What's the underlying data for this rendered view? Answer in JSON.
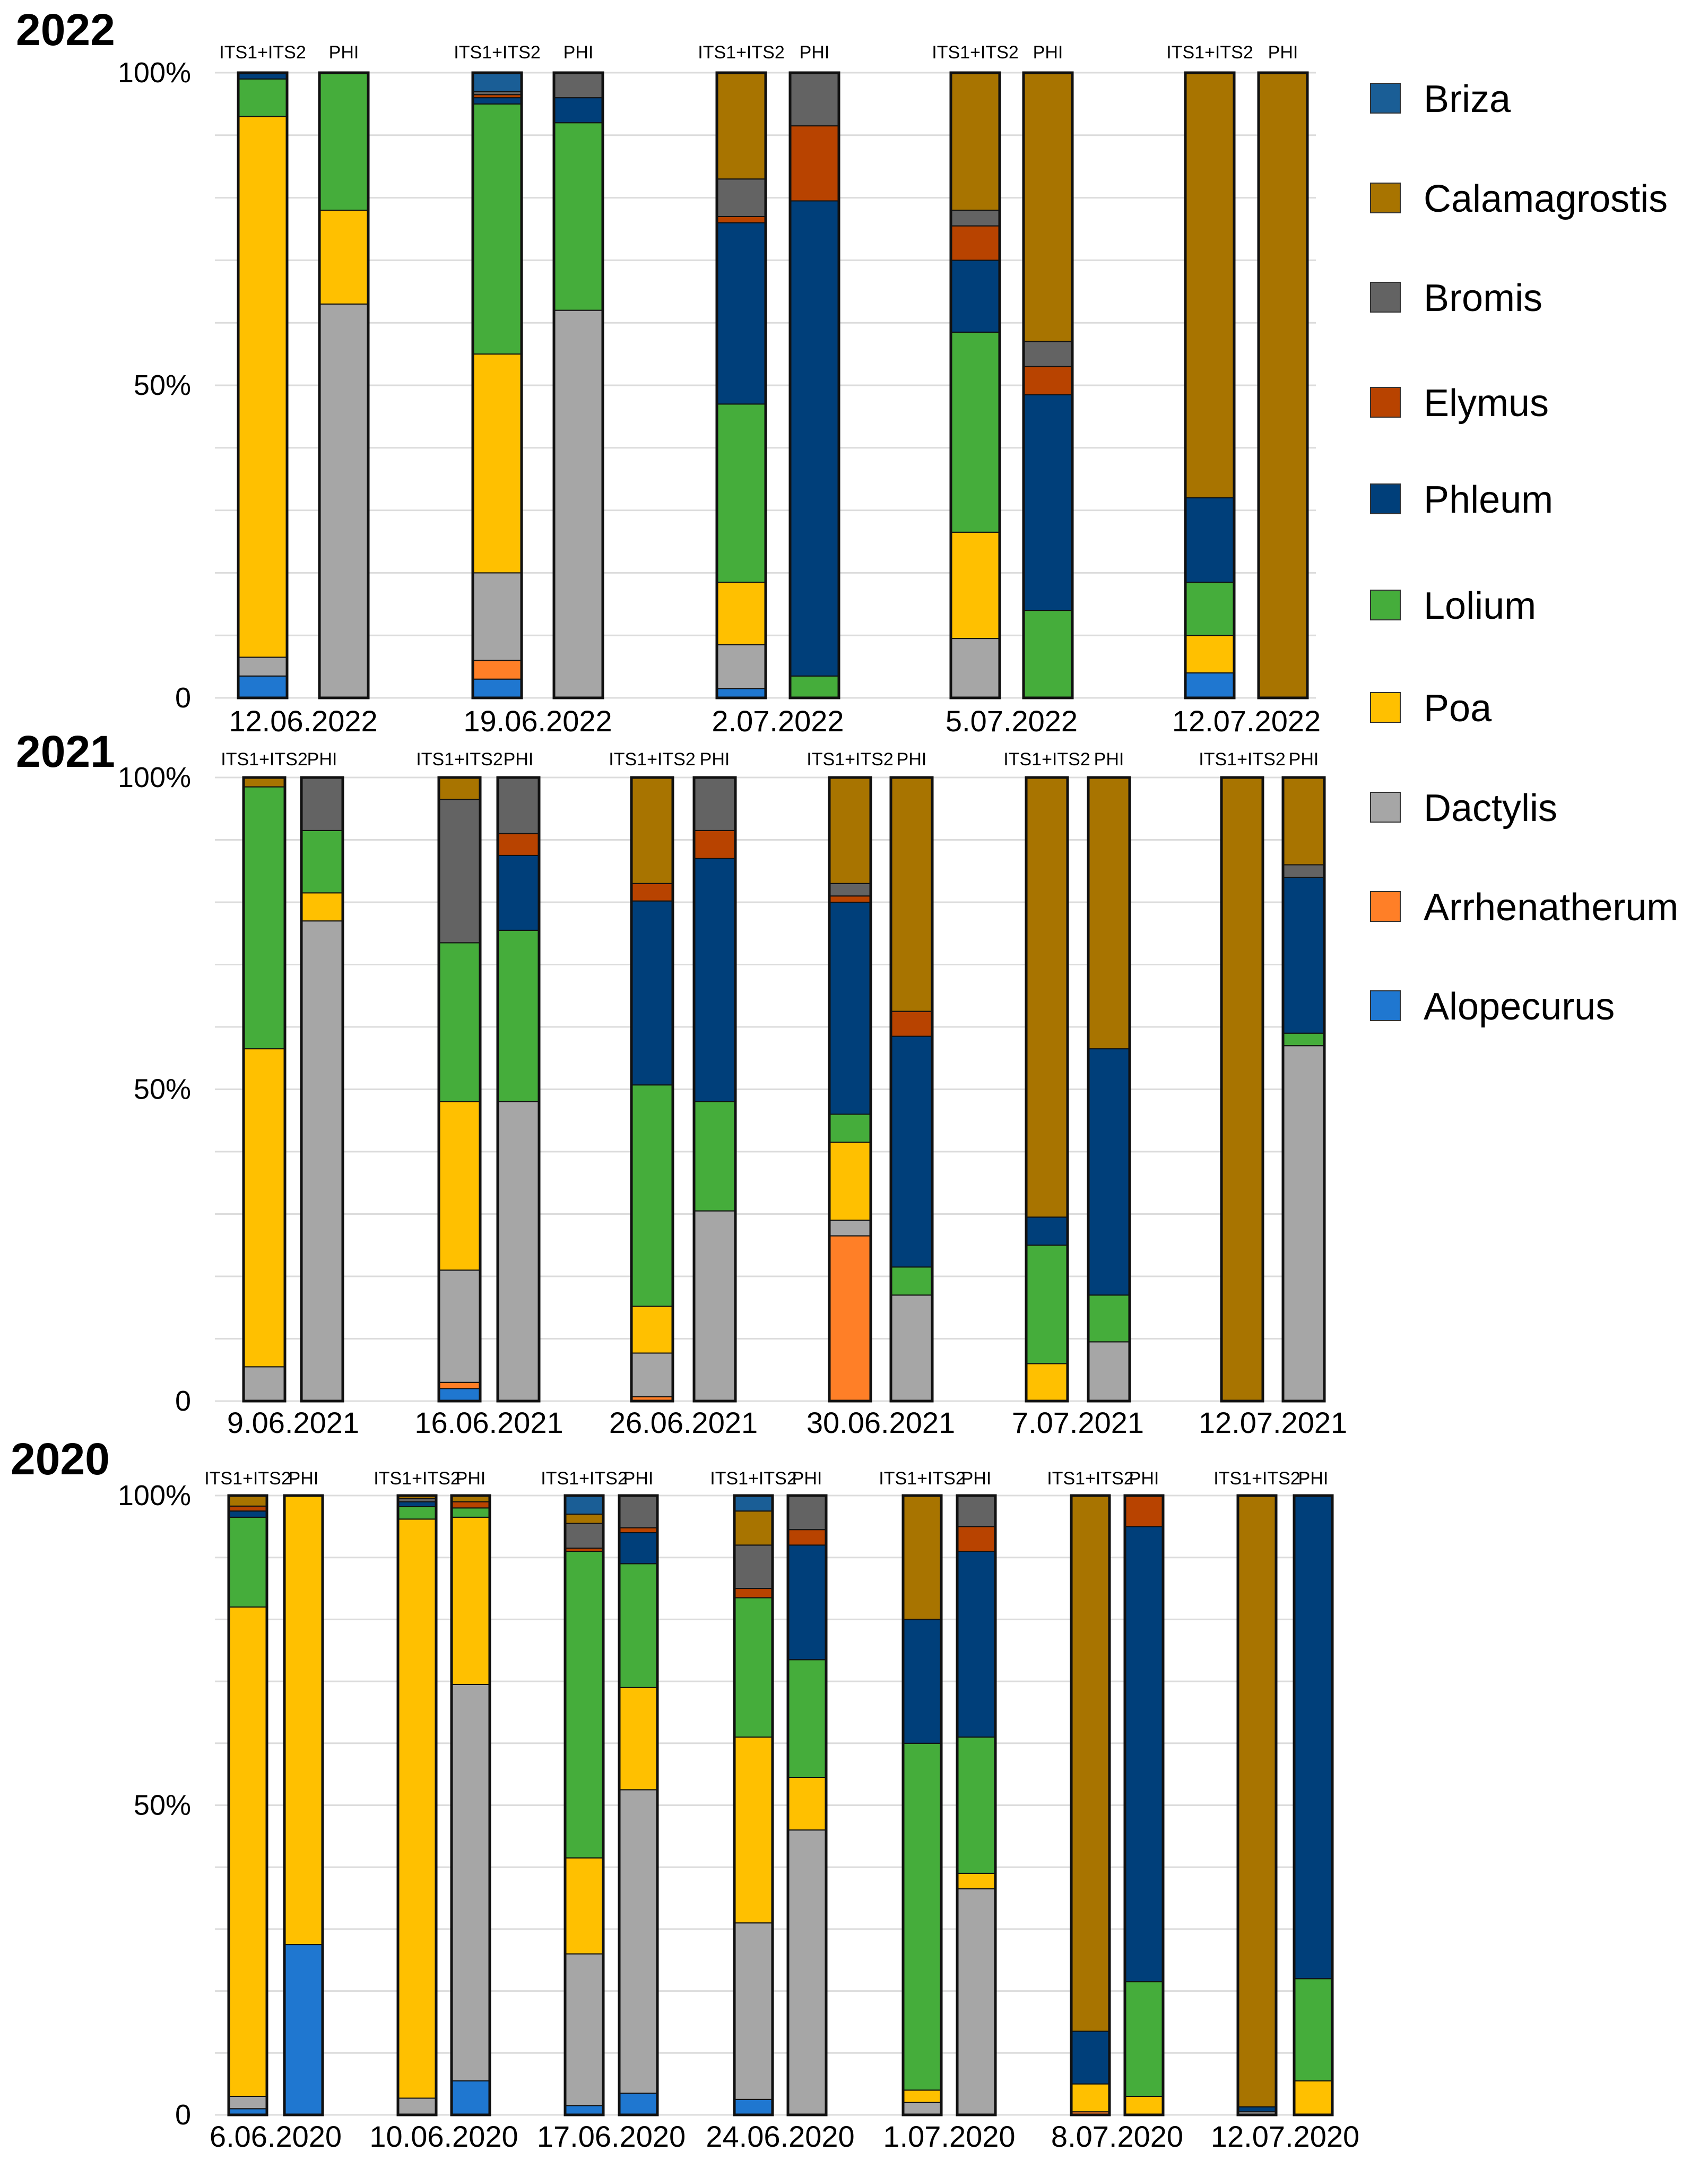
{
  "chart_data": {
    "type": "bar",
    "stacked": true,
    "normalized": true,
    "ylim": [
      0,
      100
    ],
    "yticks": [
      "0",
      "50%",
      "100%"
    ],
    "grid": true,
    "legend": {
      "placement": "right",
      "entries": [
        {
          "name": "Briza",
          "color": "#1a5e96"
        },
        {
          "name": "Calamagrostis",
          "color": "#a87400"
        },
        {
          "name": "Bromis",
          "color": "#636363"
        },
        {
          "name": "Elymus",
          "color": "#b84300"
        },
        {
          "name": "Phleum",
          "color": "#003f7a"
        },
        {
          "name": "Lolium",
          "color": "#45ad3b"
        },
        {
          "name": "Poa",
          "color": "#ffc000"
        },
        {
          "name": "Dactylis",
          "color": "#a6a6a6"
        },
        {
          "name": "Arrhenatherum",
          "color": "#ff7f27"
        },
        {
          "name": "Alopecurus",
          "color": "#1f77d0"
        }
      ]
    },
    "panels": [
      {
        "year": "2022",
        "groups": [
          {
            "date": "12.06.2022",
            "bars": [
              {
                "label": "ITS1+ITS2",
                "values": {
                  "Alopecurus": 3.5,
                  "Dactylis": 3,
                  "Poa": 86.5,
                  "Lolium": 6,
                  "Phleum": 1
                }
              },
              {
                "label": "PHI",
                "values": {
                  "Dactylis": 63,
                  "Poa": 15,
                  "Lolium": 22
                }
              }
            ]
          },
          {
            "date": "19.06.2022",
            "bars": [
              {
                "label": "ITS1+ITS2",
                "values": {
                  "Alopecurus": 3,
                  "Arrhenatherum": 3,
                  "Dactylis": 14,
                  "Poa": 35,
                  "Lolium": 40,
                  "Phleum": 1,
                  "Elymus": 0.5,
                  "Bromis": 0.5,
                  "Briza": 3
                }
              },
              {
                "label": "PHI",
                "values": {
                  "Dactylis": 62,
                  "Lolium": 30,
                  "Phleum": 4,
                  "Bromis": 4
                }
              }
            ]
          },
          {
            "date": "2.07.2022",
            "bars": [
              {
                "label": "ITS1+ITS2",
                "values": {
                  "Alopecurus": 1.5,
                  "Dactylis": 7,
                  "Poa": 10,
                  "Lolium": 28.5,
                  "Phleum": 29,
                  "Elymus": 1,
                  "Bromis": 6,
                  "Calamagrostis": 17
                }
              },
              {
                "label": "PHI",
                "values": {
                  "Lolium": 3.5,
                  "Phleum": 76,
                  "Elymus": 12,
                  "Bromis": 8.5
                }
              }
            ]
          },
          {
            "date": "5.07.2022",
            "bars": [
              {
                "label": "ITS1+ITS2",
                "values": {
                  "Dactylis": 9.5,
                  "Poa": 17,
                  "Lolium": 32,
                  "Phleum": 11.5,
                  "Elymus": 5.5,
                  "Bromis": 2.5,
                  "Calamagrostis": 22
                }
              },
              {
                "label": "PHI",
                "values": {
                  "Lolium": 14,
                  "Phleum": 34.5,
                  "Elymus": 4.5,
                  "Bromis": 4,
                  "Calamagrostis": 43
                }
              }
            ]
          },
          {
            "date": "12.07.2022",
            "bars": [
              {
                "label": "ITS1+ITS2",
                "values": {
                  "Alopecurus": 4,
                  "Poa": 6,
                  "Lolium": 8.5,
                  "Phleum": 13.5,
                  "Calamagrostis": 68
                }
              },
              {
                "label": "PHI",
                "values": {
                  "Calamagrostis": 100
                }
              }
            ]
          }
        ]
      },
      {
        "year": "2021",
        "groups": [
          {
            "date": "9.06.2021",
            "bars": [
              {
                "label": "ITS1+ITS2",
                "values": {
                  "Dactylis": 5.5,
                  "Poa": 51,
                  "Lolium": 42,
                  "Calamagrostis": 1.5
                }
              },
              {
                "label": "PHI",
                "values": {
                  "Dactylis": 77,
                  "Poa": 4.5,
                  "Lolium": 10,
                  "Bromis": 8.5
                }
              }
            ]
          },
          {
            "date": "16.06.2021",
            "bars": [
              {
                "label": "ITS1+ITS2",
                "values": {
                  "Alopecurus": 2,
                  "Arrhenatherum": 1,
                  "Dactylis": 18,
                  "Poa": 27,
                  "Lolium": 25.5,
                  "Bromis": 23,
                  "Calamagrostis": 3.5
                }
              },
              {
                "label": "PHI",
                "values": {
                  "Dactylis": 48,
                  "Lolium": 27.5,
                  "Phleum": 12,
                  "Elymus": 3.5,
                  "Bromis": 9
                }
              }
            ]
          },
          {
            "date": "26.06.2021",
            "bars": [
              {
                "label": "ITS1+ITS2",
                "values": {
                  "Arrhenatherum": 0.7,
                  "Dactylis": 7,
                  "Poa": 7.5,
                  "Lolium": 35.5,
                  "Phleum": 29.5,
                  "Elymus": 2.8,
                  "Calamagrostis": 17
                }
              },
              {
                "label": "PHI",
                "values": {
                  "Dactylis": 30.5,
                  "Lolium": 17.5,
                  "Phleum": 39,
                  "Elymus": 4.5,
                  "Bromis": 8.5
                }
              }
            ]
          },
          {
            "date": "30.06.2021",
            "bars": [
              {
                "label": "ITS1+ITS2",
                "values": {
                  "Arrhenatherum": 26.5,
                  "Dactylis": 2.5,
                  "Poa": 12.5,
                  "Lolium": 4.5,
                  "Phleum": 34,
                  "Elymus": 1,
                  "Bromis": 2,
                  "Calamagrostis": 17
                }
              },
              {
                "label": "PHI",
                "values": {
                  "Dactylis": 17,
                  "Lolium": 4.5,
                  "Phleum": 37,
                  "Elymus": 4,
                  "Calamagrostis": 37.5
                }
              }
            ]
          },
          {
            "date": "7.07.2021",
            "bars": [
              {
                "label": "ITS1+ITS2",
                "values": {
                  "Poa": 6,
                  "Lolium": 19,
                  "Phleum": 4.5,
                  "Calamagrostis": 70.5
                }
              },
              {
                "label": "PHI",
                "values": {
                  "Dactylis": 9.5,
                  "Lolium": 7.5,
                  "Phleum": 39.5,
                  "Calamagrostis": 43.5
                }
              }
            ]
          },
          {
            "date": "12.07.2021",
            "bars": [
              {
                "label": "ITS1+ITS2",
                "values": {
                  "Calamagrostis": 100
                }
              },
              {
                "label": "PHI",
                "values": {
                  "Dactylis": 57,
                  "Lolium": 2,
                  "Phleum": 25,
                  "Bromis": 2,
                  "Calamagrostis": 14
                }
              }
            ]
          }
        ]
      },
      {
        "year": "2020",
        "groups": [
          {
            "date": "6.06.2020",
            "bars": [
              {
                "label": "ITS1+ITS2",
                "values": {
                  "Alopecurus": 1,
                  "Phleum": 1,
                  "Dactylis": 2,
                  "Poa": 79,
                  "Lolium": 14.5,
                  "Elymus": 0.8,
                  "Calamagrostis": 1.7
                }
              },
              {
                "label": "PHI",
                "values": {
                  "Alopecurus": 27.5,
                  "Poa": 72.5
                }
              }
            ]
          },
          {
            "date": "10.06.2020",
            "bars": [
              {
                "label": "ITS1+ITS2",
                "values": {
                  "Phleum": 0.8,
                  "Dactylis": 2.7,
                  "Poa": 93.5,
                  "Lolium": 2,
                  "Bromis": 0.5,
                  "Calamagrostis": 0.5
                }
              },
              {
                "label": "PHI",
                "values": {
                  "Alopecurus": 5.5,
                  "Dactylis": 64,
                  "Poa": 27,
                  "Lolium": 1.5,
                  "Elymus": 1,
                  "Calamagrostis": 1
                }
              }
            ]
          },
          {
            "date": "17.06.2020",
            "bars": [
              {
                "label": "ITS1+ITS2",
                "values": {
                  "Alopecurus": 1.5,
                  "Elymus": 0.5,
                  "Dactylis": 24.5,
                  "Poa": 15.5,
                  "Lolium": 49.5,
                  "Bromis": 4,
                  "Calamagrostis": 1.5,
                  "Briza": 3
                }
              },
              {
                "label": "PHI",
                "values": {
                  "Alopecurus": 3.5,
                  "Dactylis": 49,
                  "Poa": 16.5,
                  "Lolium": 20,
                  "Phleum": 5,
                  "Elymus": 0.8,
                  "Bromis": 5.2
                }
              }
            ]
          },
          {
            "date": "24.06.2020",
            "bars": [
              {
                "label": "ITS1+ITS2",
                "values": {
                  "Alopecurus": 2.5,
                  "Dactylis": 28.5,
                  "Poa": 30,
                  "Lolium": 22.5,
                  "Elymus": 1.5,
                  "Bromis": 7,
                  "Calamagrostis": 5.5,
                  "Briza": 2.5
                }
              },
              {
                "label": "PHI",
                "values": {
                  "Dactylis": 46,
                  "Poa": 8.5,
                  "Lolium": 19,
                  "Phleum": 18.5,
                  "Elymus": 2.5,
                  "Bromis": 5.5
                }
              }
            ]
          },
          {
            "date": "1.07.2020",
            "bars": [
              {
                "label": "ITS1+ITS2",
                "values": {
                  "Dactylis": 2,
                  "Poa": 2,
                  "Lolium": 56,
                  "Phleum": 20,
                  "Calamagrostis": 20
                }
              },
              {
                "label": "PHI",
                "values": {
                  "Dactylis": 36.5,
                  "Poa": 2.5,
                  "Lolium": 22,
                  "Phleum": 30,
                  "Elymus": 4,
                  "Bromis": 5
                }
              }
            ]
          },
          {
            "date": "8.07.2020",
            "bars": [
              {
                "label": "ITS1+ITS2",
                "values": {
                  "Arrhenatherum": 0.5,
                  "Poa": 4.5,
                  "Phleum": 8.5,
                  "Calamagrostis": 86.5
                }
              },
              {
                "label": "PHI",
                "values": {
                  "Poa": 3,
                  "Lolium": 18.5,
                  "Phleum": 73.5,
                  "Elymus": 5
                }
              }
            ]
          },
          {
            "date": "12.07.2020",
            "bars": [
              {
                "label": "ITS1+ITS2",
                "values": {
                  "Dactylis": 0.5,
                  "Phleum": 0.8,
                  "Calamagrostis": 98.7
                }
              },
              {
                "label": "PHI",
                "values": {
                  "Poa": 5.5,
                  "Lolium": 16.5,
                  "Phleum": 78
                }
              }
            ]
          }
        ]
      }
    ]
  }
}
